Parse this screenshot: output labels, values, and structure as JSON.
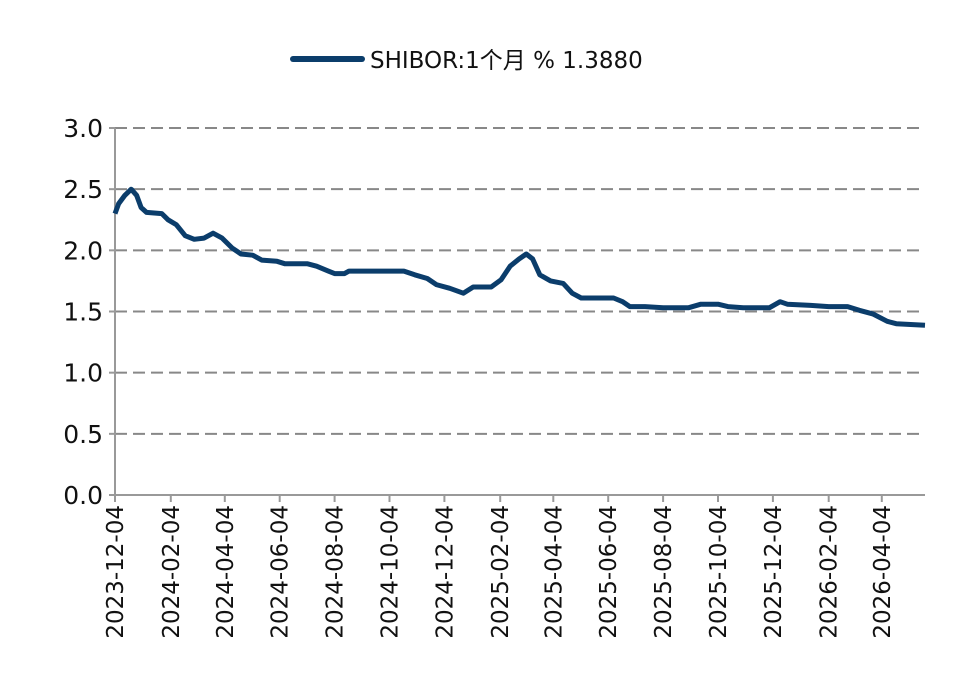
{
  "chart_data": {
    "type": "line",
    "x": [
      "2023-12-04",
      "2023-12-08",
      "2023-12-15",
      "2023-12-22",
      "2023-12-28",
      "2024-01-02",
      "2024-01-08",
      "2024-01-25",
      "2024-02-01",
      "2024-02-10",
      "2024-02-20",
      "2024-03-01",
      "2024-03-12",
      "2024-03-22",
      "2024-04-01",
      "2024-04-12",
      "2024-04-22",
      "2024-05-05",
      "2024-05-15",
      "2024-06-01",
      "2024-06-10",
      "2024-07-05",
      "2024-07-15",
      "2024-07-28",
      "2024-08-04",
      "2024-08-15",
      "2024-08-20",
      "2024-10-04",
      "2024-10-20",
      "2024-11-01",
      "2024-11-15",
      "2024-11-25",
      "2024-12-10",
      "2024-12-25",
      "2025-01-05",
      "2025-01-25",
      "2025-02-05",
      "2025-02-15",
      "2025-02-25",
      "2025-03-05",
      "2025-03-12",
      "2025-03-20",
      "2025-04-01",
      "2025-04-15",
      "2025-04-25",
      "2025-05-05",
      "2025-06-10",
      "2025-06-20",
      "2025-06-28",
      "2025-07-15",
      "2025-08-04",
      "2025-09-01",
      "2025-09-15",
      "2025-10-04",
      "2025-10-15",
      "2025-11-01",
      "2025-11-30",
      "2025-12-12",
      "2025-12-20",
      "2026-01-15",
      "2026-02-04",
      "2026-02-25",
      "2026-03-10",
      "2026-03-25",
      "2026-04-10",
      "2026-04-20",
      "2026-05-22"
    ],
    "series": [
      {
        "name": "SHIBOR:1个月 % 1.3880",
        "color": "#0b3d6b",
        "values": [
          2.3,
          2.38,
          2.45,
          2.5,
          2.45,
          2.35,
          2.31,
          2.3,
          2.25,
          2.21,
          2.12,
          2.09,
          2.1,
          2.14,
          2.1,
          2.02,
          1.97,
          1.96,
          1.92,
          1.91,
          1.89,
          1.89,
          1.87,
          1.83,
          1.81,
          1.81,
          1.83,
          1.83,
          1.83,
          1.8,
          1.77,
          1.72,
          1.69,
          1.65,
          1.7,
          1.7,
          1.76,
          1.87,
          1.93,
          1.97,
          1.93,
          1.8,
          1.75,
          1.73,
          1.65,
          1.61,
          1.61,
          1.58,
          1.54,
          1.54,
          1.53,
          1.53,
          1.56,
          1.56,
          1.54,
          1.53,
          1.53,
          1.58,
          1.56,
          1.55,
          1.54,
          1.54,
          1.51,
          1.48,
          1.42,
          1.4,
          1.388
        ]
      }
    ],
    "xlim": [
      "2023-12-04",
      "2026-05-22"
    ],
    "xticks": [
      "2023-12-04",
      "2024-02-04",
      "2024-04-04",
      "2024-06-04",
      "2024-08-04",
      "2024-10-04",
      "2024-12-04",
      "2025-02-04",
      "2025-04-04",
      "2025-06-04",
      "2025-08-04",
      "2025-10-04",
      "2025-12-04",
      "2026-02-04",
      "2026-04-04"
    ],
    "ylim": [
      0,
      3
    ],
    "yticks": [
      {
        "value": 0,
        "label": "0.0"
      },
      0.5,
      {
        "value": 1,
        "label": "1.0"
      },
      1.5,
      {
        "value": 2,
        "label": "2.0"
      },
      2.5,
      {
        "value": 3,
        "label": "3.0"
      }
    ],
    "grid": true,
    "legend": "top"
  }
}
